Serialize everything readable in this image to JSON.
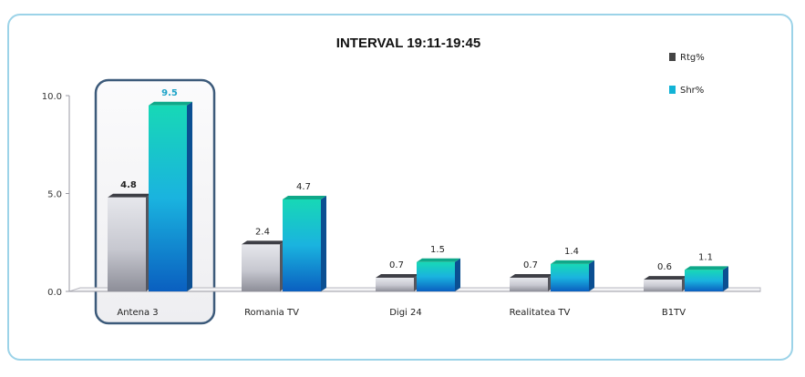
{
  "chart_data": {
    "type": "bar",
    "title": "INTERVAL 19:11-19:45",
    "categories": [
      "Antena 3",
      "Romania TV",
      "Digi 24",
      "Realitatea TV",
      "B1TV"
    ],
    "series": [
      {
        "name": "Rtg%",
        "values": [
          4.8,
          2.4,
          0.7,
          0.7,
          0.6
        ]
      },
      {
        "name": "Shr%",
        "values": [
          9.5,
          4.7,
          1.5,
          1.4,
          1.1
        ]
      }
    ],
    "ylim": [
      0,
      10
    ],
    "yticks": [
      "0.0",
      "5.0",
      "10.0"
    ],
    "value_labels": {
      "Rtg%": [
        "4.8",
        "2.4",
        "0.7",
        "0.7",
        "0.6"
      ],
      "Shr%": [
        "9.5",
        "4.7",
        "1.5",
        "1.4",
        "1.1"
      ]
    },
    "highlighted_category": "Antena 3",
    "legend_position": "top-right",
    "grid": false,
    "colors": {
      "frame": "#9cd3e8",
      "highlight_border": "#3c5a7a",
      "highlight_label": "#1ea3c8",
      "rtg_light": "#e3e4e9",
      "rtg_dark": "#8d8e98",
      "shr_top": "#17d6b8",
      "shr_bottom": "#0a63c4",
      "text": "#222222"
    }
  }
}
